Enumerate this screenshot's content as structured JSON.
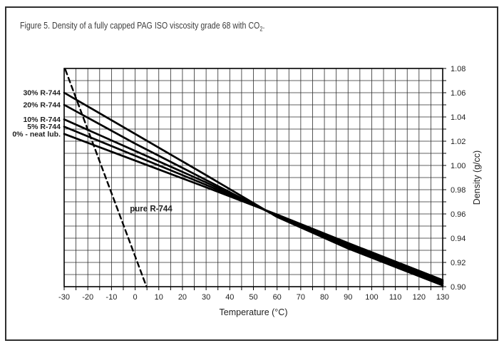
{
  "caption": {
    "prefix": "Figure 5. Density of a fully capped PAG ISO viscosity grade 68 with CO",
    "sub": "2",
    "suffix": "."
  },
  "colors": {
    "line": "#000000",
    "grid": "#2b2b2b",
    "text": "#1f1f1f",
    "frame": "#2f2f2f",
    "background": "#ffffff"
  },
  "chart_data": {
    "type": "line",
    "title": "Density of a fully capped PAG ISO viscosity grade 68 with CO2",
    "xlabel": "Temperature (°C)",
    "ylabel": "Density (g/cc)",
    "xlim": [
      -30,
      130
    ],
    "ylim": [
      0.9,
      1.08
    ],
    "x_grid_step": 5,
    "x_label_step": 10,
    "y_grid_step": 0.01,
    "y_label_step": 0.02,
    "grid": "on",
    "legend_position": "labels-at-line-start-left",
    "x_tick_labels": [
      "-30",
      "-20",
      "-10",
      "0",
      "10",
      "20",
      "30",
      "40",
      "50",
      "60",
      "70",
      "80",
      "90",
      "100",
      "110",
      "120",
      "130"
    ],
    "y_tick_labels": [
      "0.90",
      "0.92",
      "0.94",
      "0.96",
      "0.98",
      "1.00",
      "1.02",
      "1.04",
      "1.06",
      "1.08"
    ],
    "series": [
      {
        "name": "30% R-744",
        "style": "solid",
        "points": [
          [
            -30,
            1.06
          ],
          [
            0,
            1.026
          ],
          [
            30,
            0.992
          ],
          [
            60,
            0.9575
          ],
          [
            90,
            0.9315
          ],
          [
            130,
            0.901
          ]
        ]
      },
      {
        "name": "20% R-744",
        "style": "solid",
        "points": [
          [
            -30,
            1.05
          ],
          [
            0,
            1.018
          ],
          [
            30,
            0.988
          ],
          [
            60,
            0.958
          ],
          [
            90,
            0.933
          ],
          [
            130,
            0.9025
          ]
        ]
      },
      {
        "name": "10% R-744",
        "style": "solid",
        "points": [
          [
            -30,
            1.038
          ],
          [
            0,
            1.012
          ],
          [
            30,
            0.986
          ],
          [
            60,
            0.9585
          ],
          [
            90,
            0.934
          ],
          [
            130,
            0.9035
          ]
        ]
      },
      {
        "name": "5% R-744",
        "style": "solid",
        "points": [
          [
            -30,
            1.032
          ],
          [
            0,
            1.008
          ],
          [
            30,
            0.984
          ],
          [
            60,
            0.959
          ],
          [
            90,
            0.935
          ],
          [
            130,
            0.9045
          ]
        ]
      },
      {
        "name": "0% - neat lub.",
        "style": "solid",
        "points": [
          [
            -30,
            1.026
          ],
          [
            0,
            1.004
          ],
          [
            30,
            0.982
          ],
          [
            60,
            0.9595
          ],
          [
            90,
            0.936
          ],
          [
            130,
            0.9055
          ]
        ]
      },
      {
        "name": "pure R-744",
        "style": "dashed",
        "points": [
          [
            -29.5,
            1.079
          ],
          [
            4.8,
            0.9
          ]
        ],
        "annotation": {
          "x": -2.2,
          "y": 0.9645,
          "text": "pure R-744"
        }
      }
    ]
  }
}
